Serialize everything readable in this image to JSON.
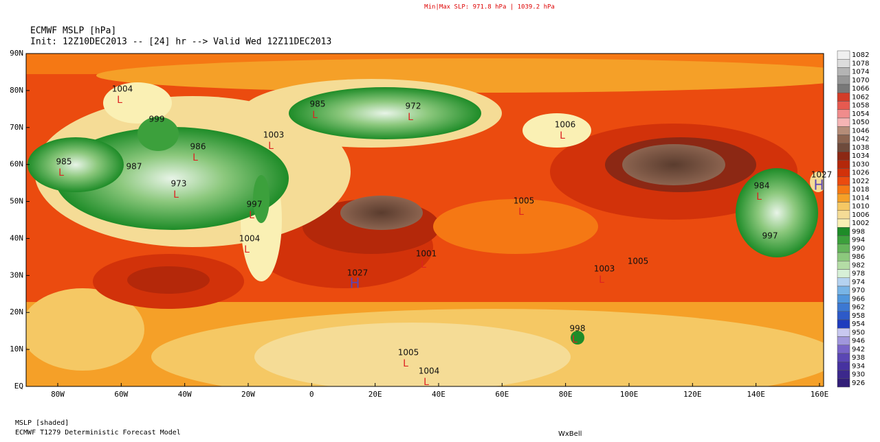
{
  "header": {
    "minmax": "Min|Max SLP: 971.8 hPa | 1039.2 hPa",
    "title": "ECMWF MSLP [hPa]",
    "init": "Init: 12Z10DEC2013 -- [24] hr --> Valid Wed 12Z11DEC2013"
  },
  "map": {
    "lat_labels": [
      "90N",
      "80N",
      "70N",
      "60N",
      "50N",
      "40N",
      "30N",
      "20N",
      "10N",
      "EQ"
    ],
    "lon_labels": [
      "80W",
      "60W",
      "40W",
      "20W",
      "0",
      "20E",
      "40E",
      "60E",
      "80E",
      "100E",
      "120E",
      "140E",
      "160E"
    ],
    "pressure_labels": [
      "1004",
      "999",
      "985",
      "972",
      "1003",
      "986",
      "985",
      "987",
      "973",
      "997",
      "1004",
      "1006",
      "1027",
      "1001",
      "1005",
      "1003",
      "1005",
      "998",
      "1005",
      "1004",
      "984",
      "997",
      "1027"
    ]
  },
  "colorbar": {
    "levels": [
      "1082",
      "1078",
      "1074",
      "1070",
      "1066",
      "1062",
      "1058",
      "1054",
      "1050",
      "1046",
      "1042",
      "1038",
      "1034",
      "1030",
      "1026",
      "1022",
      "1018",
      "1014",
      "1010",
      "1006",
      "1002",
      "998",
      "994",
      "990",
      "986",
      "982",
      "978",
      "974",
      "970",
      "966",
      "962",
      "958",
      "954",
      "950",
      "946",
      "942",
      "938",
      "934",
      "930",
      "926"
    ],
    "colors": [
      "#f0f0f0",
      "#dcdcdc",
      "#b4b4b4",
      "#969696",
      "#787878",
      "#d23c28",
      "#e65a50",
      "#f08c8c",
      "#f5b4b4",
      "#b48c78",
      "#8c6450",
      "#6e4b3c",
      "#8c2814",
      "#b4280a",
      "#d2320a",
      "#eb4b0f",
      "#f57814",
      "#f5a028",
      "#f5c864",
      "#f5dc96",
      "#faf0b4",
      "#1e8c28",
      "#3ca03c",
      "#64b45a",
      "#8cc87d",
      "#b4dca5",
      "#d7f0d7",
      "#b4d2f0",
      "#78b4e6",
      "#5096dc",
      "#3c78d2",
      "#2d5ac8",
      "#1e3cbe",
      "#c8c8f0",
      "#a096dc",
      "#7864c8",
      "#5a46b4",
      "#4632a0",
      "#3c288c",
      "#321e78"
    ]
  },
  "footer": {
    "shaded": "MSLP [shaded]",
    "model": "ECMWF T1279 Deterministic Forecast Model",
    "brand": "WxBell"
  }
}
